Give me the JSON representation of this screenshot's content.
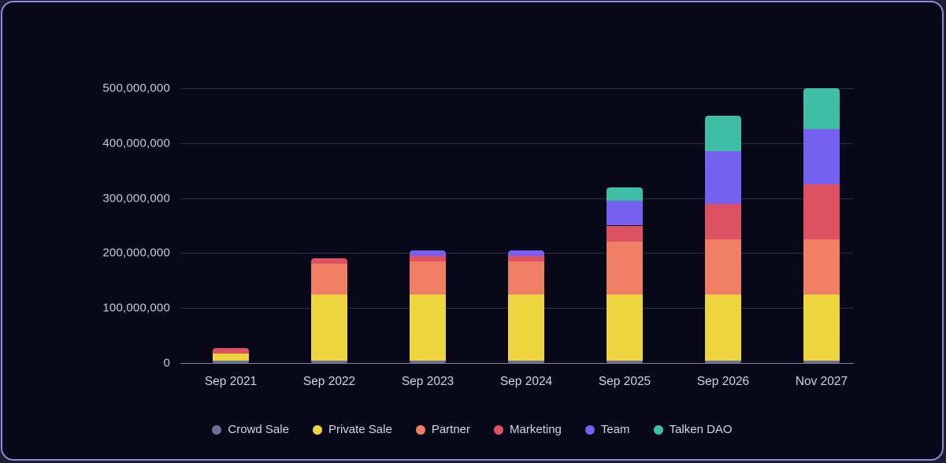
{
  "chart_data": {
    "type": "bar",
    "stacked": true,
    "title": "",
    "xlabel": "",
    "ylabel": "",
    "categories": [
      "Sep 2021",
      "Sep 2022",
      "Sep 2023",
      "Sep 2024",
      "Sep 2025",
      "Sep 2026",
      "Nov 2027"
    ],
    "series": [
      {
        "name": "Crowd Sale",
        "color": "#6a7095",
        "values": [
          5000000,
          5000000,
          5000000,
          5000000,
          5000000,
          5000000,
          5000000
        ]
      },
      {
        "name": "Private Sale",
        "color": "#eed53f",
        "values": [
          12500000,
          120000000,
          120000000,
          120000000,
          120000000,
          120000000,
          120000000
        ]
      },
      {
        "name": "Partner",
        "color": "#ef8066",
        "values": [
          0,
          55000000,
          60000000,
          60000000,
          95000000,
          100000000,
          100000000
        ]
      },
      {
        "name": "Marketing",
        "color": "#dc5263",
        "values": [
          10000000,
          10000000,
          10000000,
          10000000,
          30000000,
          65000000,
          100000000
        ]
      },
      {
        "name": "Team",
        "color": "#7560ef",
        "values": [
          0,
          0,
          10000000,
          10000000,
          45000000,
          95000000,
          100000000
        ]
      },
      {
        "name": "Talken DAO",
        "color": "#3ebfa5",
        "values": [
          0,
          0,
          0,
          0,
          25000000,
          65000000,
          75000000
        ]
      }
    ],
    "totals": [
      27500000,
      190000000,
      205000000,
      205000000,
      320000000,
      450000000,
      500000000
    ],
    "ylim": [
      0,
      500000000
    ],
    "y_ticks": [
      {
        "value": 0,
        "label": "0"
      },
      {
        "value": 100000000,
        "label": "100,000,000"
      },
      {
        "value": 200000000,
        "label": "200,000,000"
      },
      {
        "value": 300000000,
        "label": "300,000,000"
      },
      {
        "value": 400000000,
        "label": "400,000,000"
      },
      {
        "value": 500000000,
        "label": "500,000,000"
      }
    ],
    "grid": "horizontal",
    "legend_position": "bottom"
  },
  "theme": {
    "card_background": "#080819",
    "card_border": "#888bda",
    "gridline_color": "rgba(197,199,216,0.20)",
    "axis_line_color": "#83838f",
    "tick_text_color": "#c9cad6",
    "category_text_color": "#d4d5de",
    "legend_text_color": "#d5d6e0"
  }
}
